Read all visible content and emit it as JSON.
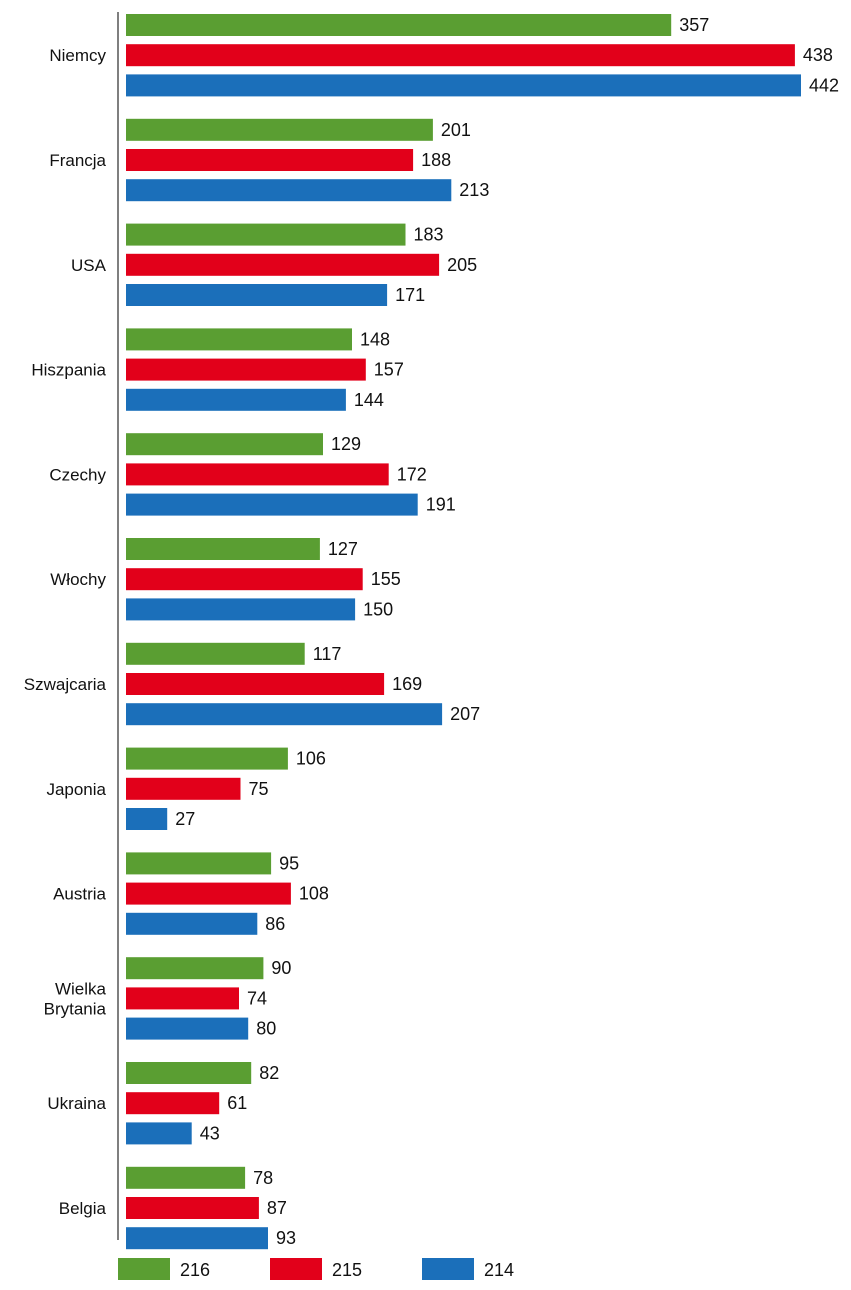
{
  "chart_data": {
    "type": "bar",
    "orientation": "horizontal",
    "title": "",
    "xlabel": "",
    "ylabel": "",
    "grid": false,
    "legend_position": "bottom",
    "xlim": [
      0,
      442
    ],
    "categories": [
      [
        "Niemcy"
      ],
      [
        "Francja"
      ],
      [
        "USA"
      ],
      [
        "Hiszpania"
      ],
      [
        "Czechy"
      ],
      [
        "Włochy"
      ],
      [
        "Szwajcaria"
      ],
      [
        "Japonia"
      ],
      [
        "Austria"
      ],
      [
        "Wielka",
        "Brytania"
      ],
      [
        "Ukraina"
      ],
      [
        "Belgia"
      ]
    ],
    "series": [
      {
        "name": "216",
        "color": "#5a9e32",
        "values": [
          357,
          201,
          183,
          148,
          129,
          127,
          117,
          106,
          95,
          90,
          82,
          78
        ]
      },
      {
        "name": "215",
        "color": "#e2001a",
        "values": [
          438,
          188,
          205,
          157,
          172,
          155,
          169,
          75,
          108,
          74,
          61,
          87
        ]
      },
      {
        "name": "214",
        "color": "#1b6fba",
        "values": [
          442,
          213,
          171,
          144,
          191,
          150,
          207,
          27,
          86,
          80,
          43,
          93
        ]
      }
    ]
  }
}
